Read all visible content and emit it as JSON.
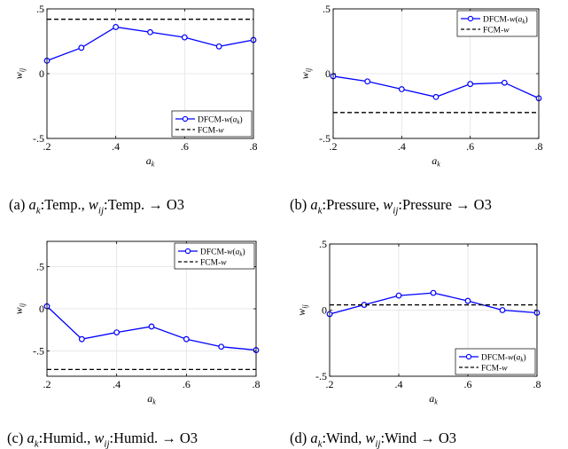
{
  "charts": [
    {
      "caption_prefix": "(a)",
      "var_name": "Temp.",
      "target": "O3",
      "chart_data": {
        "type": "line",
        "xlabel": "a_k",
        "ylabel": "w_ij",
        "xlim": [
          0.2,
          0.8
        ],
        "ylim": [
          -0.5,
          0.5
        ],
        "xticks": [
          0.2,
          0.4,
          0.6,
          0.8
        ],
        "yticks": [
          -0.5,
          0,
          0.5
        ],
        "legend_loc": "lower-right",
        "grid": true,
        "series": [
          {
            "name": "DFCM-w(a_k)",
            "style": "solid-circle",
            "color": "#0000ff",
            "x": [
              0.2,
              0.3,
              0.4,
              0.5,
              0.6,
              0.7,
              0.8
            ],
            "y": [
              0.1,
              0.2,
              0.36,
              0.32,
              0.28,
              0.21,
              0.26
            ]
          },
          {
            "name": "FCM-w",
            "style": "dashed",
            "color": "#000000",
            "x": [
              0.2,
              0.8
            ],
            "y": [
              0.42,
              0.42
            ]
          }
        ]
      }
    },
    {
      "caption_prefix": "(b)",
      "var_name": "Pressure",
      "target": "O3",
      "chart_data": {
        "type": "line",
        "xlabel": "a_k",
        "ylabel": "w_ij",
        "xlim": [
          0.2,
          0.8
        ],
        "ylim": [
          -0.5,
          0.5
        ],
        "xticks": [
          0.2,
          0.4,
          0.6,
          0.8
        ],
        "yticks": [
          -0.5,
          0,
          0.5
        ],
        "legend_loc": "top-right",
        "grid": true,
        "series": [
          {
            "name": "DFCM-w(a_k)",
            "style": "solid-circle",
            "color": "#0000ff",
            "x": [
              0.2,
              0.3,
              0.4,
              0.5,
              0.6,
              0.7,
              0.8
            ],
            "y": [
              -0.02,
              -0.06,
              -0.12,
              -0.18,
              -0.08,
              -0.07,
              -0.19
            ]
          },
          {
            "name": "FCM-w",
            "style": "dashed",
            "color": "#000000",
            "x": [
              0.2,
              0.8
            ],
            "y": [
              -0.3,
              -0.3
            ]
          }
        ]
      }
    },
    {
      "caption_prefix": "(c)",
      "var_name": "Humid.",
      "target": "O3",
      "chart_data": {
        "type": "line",
        "xlabel": "a_k",
        "ylabel": "w_ij",
        "xlim": [
          0.2,
          0.8
        ],
        "ylim": [
          -0.8,
          0.8
        ],
        "xticks": [
          0.2,
          0.4,
          0.6,
          0.8
        ],
        "yticks": [
          -0.5,
          0,
          0.5
        ],
        "legend_loc": "top-right",
        "grid": true,
        "series": [
          {
            "name": "DFCM-w(a_k)",
            "style": "solid-circle",
            "color": "#0000ff",
            "x": [
              0.2,
              0.3,
              0.4,
              0.5,
              0.6,
              0.7,
              0.8
            ],
            "y": [
              0.03,
              -0.36,
              -0.28,
              -0.21,
              -0.36,
              -0.45,
              -0.49
            ]
          },
          {
            "name": "FCM-w",
            "style": "dashed",
            "color": "#000000",
            "x": [
              0.2,
              0.8
            ],
            "y": [
              -0.72,
              -0.72
            ]
          }
        ]
      }
    },
    {
      "caption_prefix": "(d)",
      "var_name": "Wind",
      "target": "O3",
      "chart_data": {
        "type": "line",
        "xlabel": "a_k",
        "ylabel": "w_ij",
        "xlim": [
          0.2,
          0.8
        ],
        "ylim": [
          -0.5,
          0.5
        ],
        "xticks": [
          0.2,
          0.4,
          0.6,
          0.8
        ],
        "yticks": [
          -0.5,
          0,
          0.5
        ],
        "legend_loc": "lower-right",
        "grid": true,
        "series": [
          {
            "name": "DFCM-w(a_k)",
            "style": "solid-circle",
            "color": "#0000ff",
            "x": [
              0.2,
              0.3,
              0.4,
              0.5,
              0.6,
              0.7,
              0.8
            ],
            "y": [
              -0.03,
              0.04,
              0.11,
              0.13,
              0.07,
              0.0,
              -0.02
            ]
          },
          {
            "name": "FCM-w",
            "style": "dashed",
            "color": "#000000",
            "x": [
              0.2,
              0.8
            ],
            "y": [
              0.04,
              0.04
            ]
          }
        ]
      }
    }
  ]
}
